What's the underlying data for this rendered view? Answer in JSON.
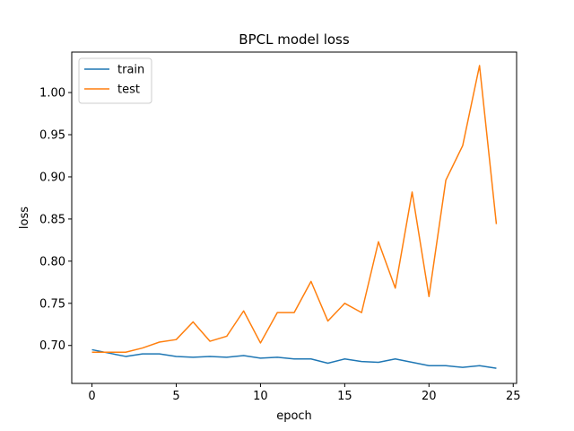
{
  "chart_data": {
    "type": "line",
    "title": "BPCL model loss",
    "xlabel": "epoch",
    "ylabel": "loss",
    "xlim": [
      -1.2,
      25.2
    ],
    "ylim": [
      0.655,
      1.048
    ],
    "xticks": [
      0,
      5,
      10,
      15,
      20,
      25
    ],
    "xtick_labels": [
      "0",
      "5",
      "10",
      "15",
      "20",
      "25"
    ],
    "yticks": [
      0.7,
      0.75,
      0.8,
      0.85,
      0.9,
      0.95,
      1.0
    ],
    "ytick_labels": [
      "0.70",
      "0.75",
      "0.80",
      "0.85",
      "0.90",
      "0.95",
      "1.00"
    ],
    "grid": false,
    "legend_position": "top-left",
    "x": [
      0,
      1,
      2,
      3,
      4,
      5,
      6,
      7,
      8,
      9,
      10,
      11,
      12,
      13,
      14,
      15,
      16,
      17,
      18,
      19,
      20,
      21,
      22,
      23,
      24
    ],
    "series": [
      {
        "name": "train",
        "color": "#1f77b4",
        "values": [
          0.695,
          0.691,
          0.687,
          0.69,
          0.69,
          0.687,
          0.686,
          0.687,
          0.686,
          0.688,
          0.685,
          0.686,
          0.684,
          0.684,
          0.679,
          0.684,
          0.681,
          0.68,
          0.684,
          0.68,
          0.676,
          0.676,
          0.674,
          0.676,
          0.673
        ]
      },
      {
        "name": "test",
        "color": "#ff7f0e",
        "values": [
          0.692,
          0.692,
          0.692,
          0.697,
          0.704,
          0.707,
          0.728,
          0.705,
          0.711,
          0.741,
          0.703,
          0.739,
          0.739,
          0.776,
          0.729,
          0.75,
          0.739,
          0.823,
          0.768,
          0.882,
          0.758,
          0.896,
          0.937,
          1.032,
          0.844
        ]
      }
    ]
  }
}
